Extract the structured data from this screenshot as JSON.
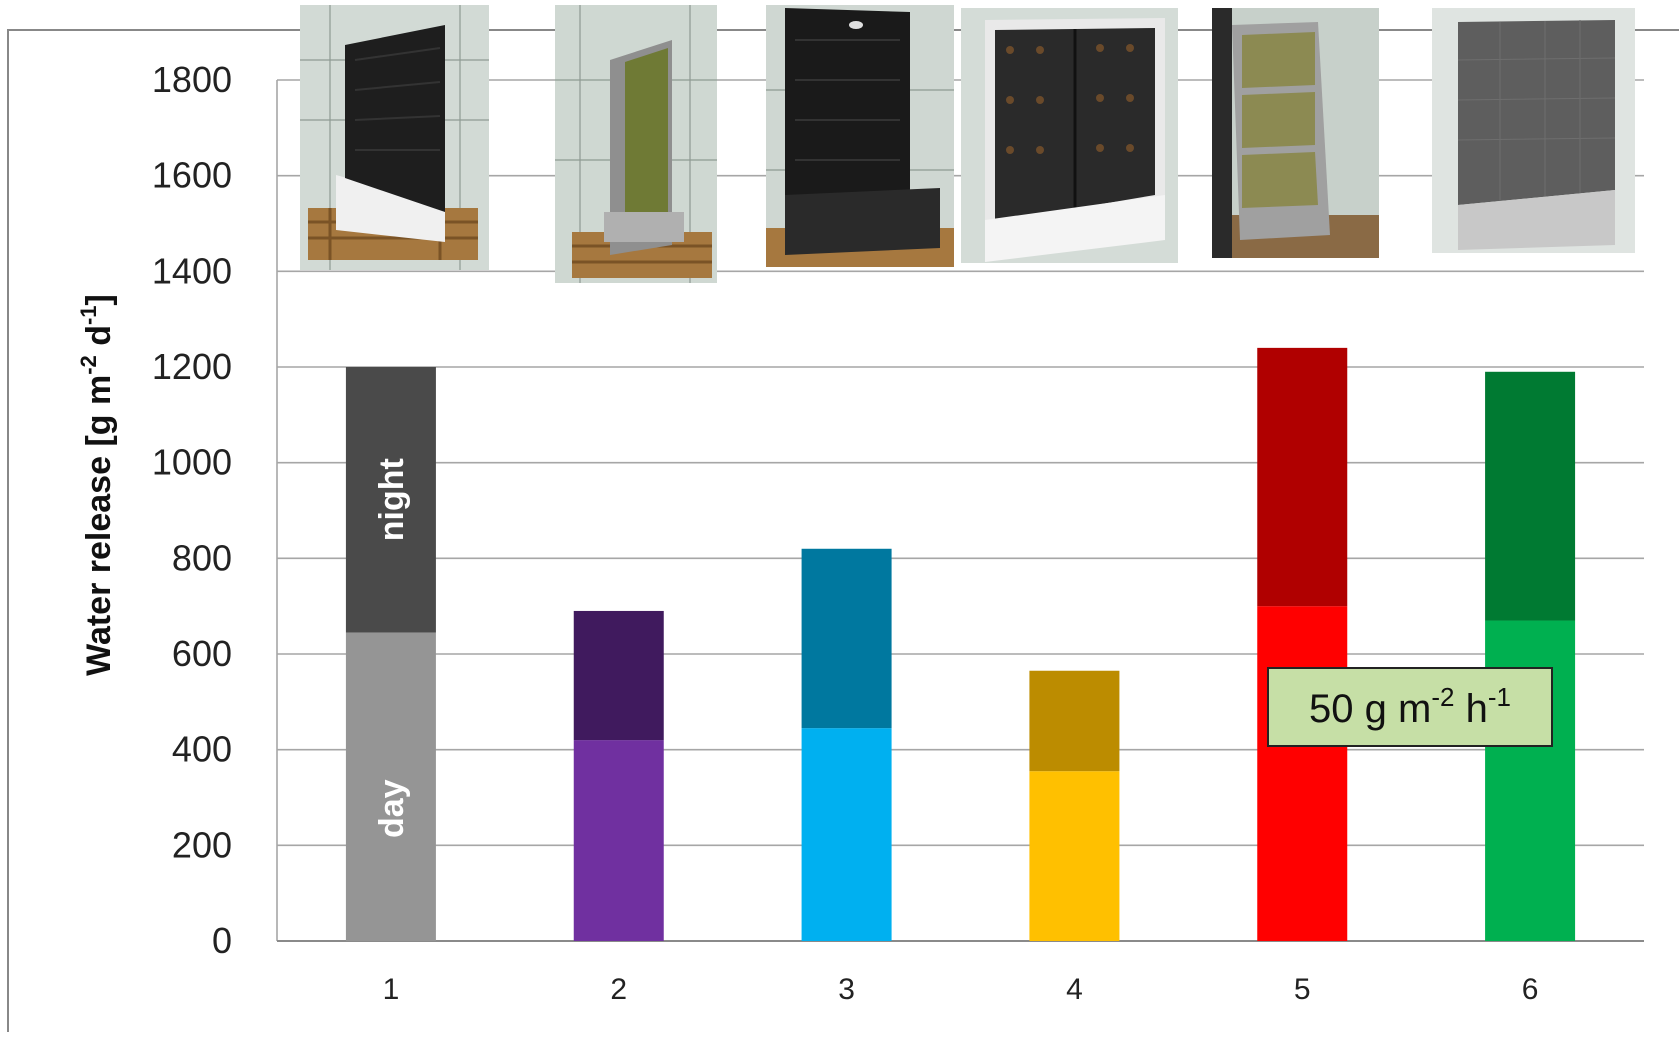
{
  "chart_data": {
    "type": "bar",
    "stacked": true,
    "categories": [
      "1",
      "2",
      "3",
      "4",
      "5",
      "6"
    ],
    "series": [
      {
        "label": "day",
        "values": [
          645,
          420,
          445,
          355,
          700,
          670
        ]
      },
      {
        "label": "night",
        "values": [
          555,
          270,
          375,
          210,
          540,
          520
        ]
      }
    ],
    "totals": [
      1200,
      690,
      820,
      565,
      1240,
      1190
    ],
    "colors": {
      "day": [
        "#959595",
        "#7030a0",
        "#00b0f0",
        "#ffc000",
        "#ff0000",
        "#00b050"
      ],
      "night": [
        "#4a4a4a",
        "#401a5e",
        "#00789f",
        "#bc8c00",
        "#b00000",
        "#007a32"
      ]
    },
    "ylabel_main": "Water release [g m",
    "ylabel_exp1": "-2",
    "ylabel_mid": " d",
    "ylabel_exp2": "-1",
    "ylabel_end": "]",
    "yticks": [
      0,
      200,
      400,
      600,
      800,
      1000,
      1200,
      1400,
      1600,
      1800
    ],
    "ylim": [
      0,
      1800
    ],
    "grid": true,
    "annotation": {
      "base": "50 g m",
      "exp1": "-2",
      "mid": " h",
      "exp2": "-1"
    },
    "photos": [
      "wall-module-1-photo",
      "wall-module-2-photo",
      "wall-module-3-photo",
      "wall-module-4-photo",
      "wall-module-5-photo",
      "wall-module-6-photo"
    ]
  }
}
